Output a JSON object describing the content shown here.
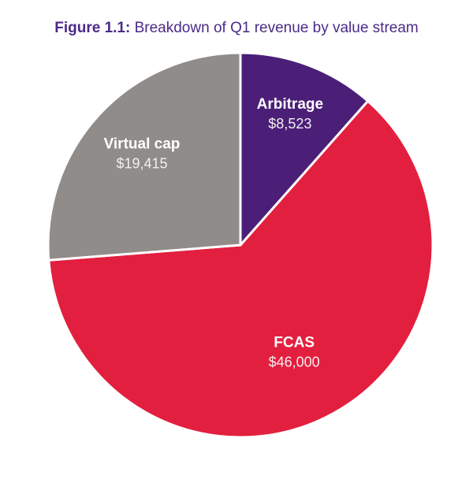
{
  "chart_data": {
    "type": "pie",
    "figure_label": "Figure 1.1:",
    "title": "Breakdown of Q1 revenue by value stream",
    "categories": [
      "Arbitrage",
      "FCAS",
      "Virtual cap"
    ],
    "values": [
      8523,
      46000,
      19415
    ],
    "value_labels": [
      "$8,523",
      "$46,000",
      "$19,415"
    ],
    "colors": [
      "#4b1f78",
      "#e31f3f",
      "#908c89"
    ]
  }
}
